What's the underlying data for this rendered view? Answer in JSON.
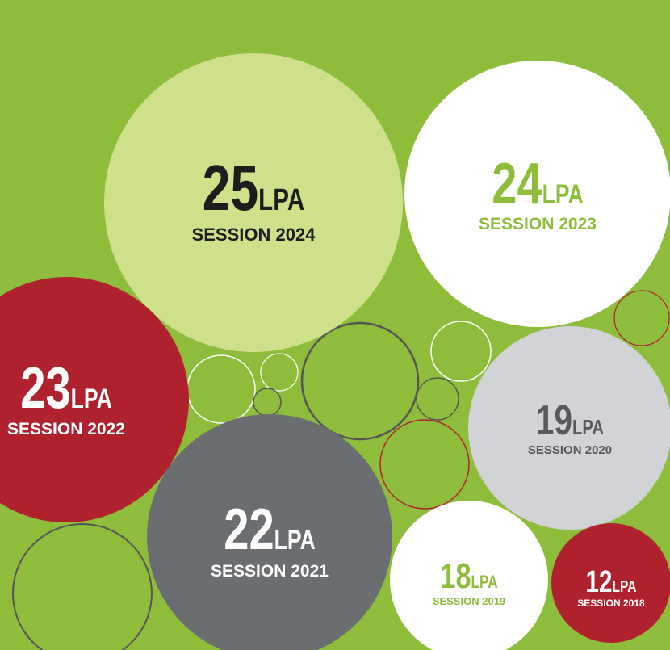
{
  "bubbles": [
    {
      "value": 25,
      "unit": "LPA",
      "label": "SESSION 2024"
    },
    {
      "value": 24,
      "unit": "LPA",
      "label": "SESSION 2023"
    },
    {
      "value": 23,
      "unit": "LPA",
      "label": "SESSION 2022"
    },
    {
      "value": 22,
      "unit": "LPA",
      "label": "SESSION 2021"
    },
    {
      "value": 19,
      "unit": "LPA",
      "label": "SESSION 2020"
    },
    {
      "value": 18,
      "unit": "LPA",
      "label": "SESSION 2019"
    },
    {
      "value": 12,
      "unit": "LPA",
      "label": "SESSION 2018"
    }
  ]
}
